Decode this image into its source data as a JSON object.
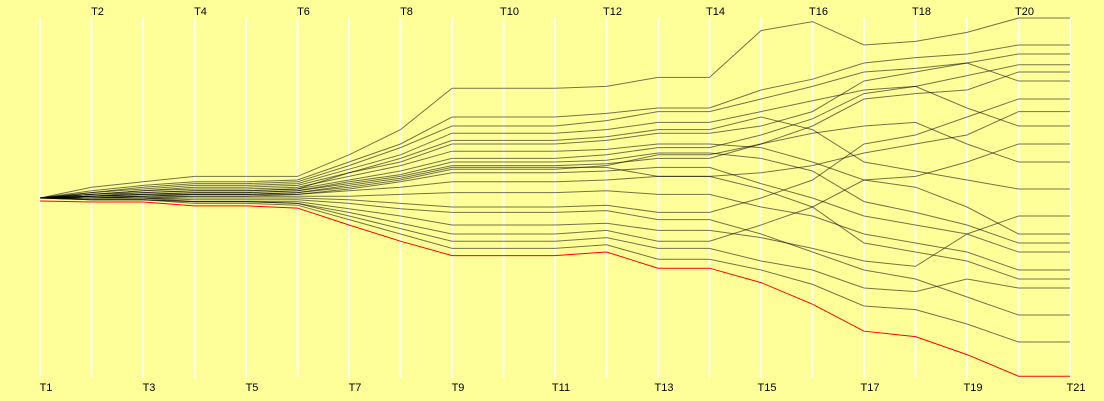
{
  "chart_data": {
    "type": "parallel",
    "categories": [
      "T1",
      "T2",
      "T3",
      "T4",
      "T5",
      "T6",
      "T7",
      "T8",
      "T9",
      "T10",
      "T11",
      "T12",
      "T13",
      "T14",
      "T15",
      "T16",
      "T17",
      "T18",
      "T19",
      "T20",
      "T21"
    ],
    "ylim": [
      -100,
      100
    ],
    "background": "#ffff99",
    "series": [
      {
        "color": "#000000",
        "values": [
          0,
          6,
          9,
          12,
          12,
          12,
          24,
          38,
          61,
          61,
          61,
          62,
          67,
          67,
          93,
          98,
          85,
          87,
          92,
          100,
          100
        ]
      },
      {
        "color": "#000000",
        "values": [
          0,
          4,
          7,
          9,
          9,
          10,
          20,
          30,
          45,
          45,
          45,
          47,
          50,
          50,
          60,
          66,
          75,
          78,
          80,
          85,
          85
        ]
      },
      {
        "color": "#000000",
        "values": [
          0,
          3,
          5,
          7,
          7,
          8,
          16,
          24,
          36,
          36,
          36,
          38,
          42,
          42,
          48,
          54,
          60,
          62,
          68,
          74,
          74
        ]
      },
      {
        "color": "#000000",
        "values": [
          0,
          2,
          4,
          5,
          5,
          6,
          12,
          18,
          26,
          26,
          26,
          27,
          30,
          30,
          28,
          20,
          10,
          6,
          -5,
          -20,
          -20
        ]
      },
      {
        "color": "#000000",
        "values": [
          0,
          1,
          2,
          3,
          3,
          4,
          8,
          12,
          18,
          18,
          18,
          19,
          22,
          22,
          30,
          40,
          55,
          58,
          60,
          70,
          70
        ]
      },
      {
        "color": "#000000",
        "values": [
          0,
          1,
          1,
          2,
          2,
          2,
          4,
          6,
          9,
          9,
          9,
          10,
          12,
          12,
          14,
          18,
          25,
          30,
          35,
          48,
          48
        ]
      },
      {
        "color": "#000000",
        "values": [
          0,
          0,
          0,
          1,
          1,
          1,
          1,
          2,
          3,
          3,
          3,
          4,
          2,
          2,
          -5,
          -10,
          -20,
          -25,
          -30,
          -40,
          -40
        ]
      },
      {
        "color": "#000000",
        "values": [
          0,
          0,
          0,
          -1,
          -1,
          -1,
          -3,
          -6,
          -8,
          -8,
          -8,
          -7,
          -12,
          -12,
          -20,
          -30,
          -40,
          -45,
          -55,
          -65,
          -65
        ]
      },
      {
        "color": "#000000",
        "values": [
          0,
          0,
          0,
          -2,
          -2,
          -3,
          -8,
          -14,
          -20,
          -20,
          -20,
          -18,
          -24,
          -24,
          -15,
          -5,
          10,
          12,
          20,
          30,
          30
        ]
      },
      {
        "color": "#000000",
        "values": [
          0,
          -1,
          -1,
          -3,
          -3,
          -4,
          -12,
          -20,
          -28,
          -28,
          -28,
          -26,
          -34,
          -34,
          -40,
          -48,
          -60,
          -62,
          -70,
          -80,
          -80
        ]
      },
      {
        "color": "#000000",
        "values": [
          0,
          1,
          3,
          4,
          4,
          5,
          10,
          15,
          22,
          22,
          22,
          24,
          28,
          28,
          35,
          44,
          58,
          62,
          50,
          40,
          40
        ]
      },
      {
        "color": "#000000",
        "values": [
          0,
          2,
          3,
          4,
          4,
          5,
          14,
          22,
          32,
          32,
          32,
          34,
          38,
          38,
          45,
          38,
          20,
          15,
          10,
          5,
          5
        ]
      },
      {
        "color": "#000000",
        "values": [
          0,
          0,
          1,
          1,
          1,
          2,
          5,
          9,
          14,
          14,
          14,
          15,
          17,
          17,
          8,
          0,
          -10,
          -15,
          -20,
          -30,
          -30
        ]
      },
      {
        "color": "#000000",
        "values": [
          0,
          0,
          0,
          0,
          0,
          0,
          -1,
          -3,
          -5,
          -5,
          -5,
          -4,
          -8,
          -8,
          0,
          10,
          30,
          35,
          45,
          55,
          55
        ]
      },
      {
        "color": "#000000",
        "values": [
          0,
          -1,
          -1,
          -2,
          -2,
          -3,
          -10,
          -17,
          -24,
          -24,
          -24,
          -22,
          -28,
          -28,
          -35,
          -40,
          -50,
          -52,
          -45,
          -50,
          -50
        ]
      },
      {
        "color": "#000000",
        "values": [
          0,
          1,
          2,
          2,
          2,
          3,
          6,
          10,
          16,
          16,
          16,
          18,
          24,
          24,
          30,
          36,
          40,
          42,
          30,
          20,
          20
        ]
      },
      {
        "color": "#000000",
        "values": [
          0,
          0,
          1,
          2,
          2,
          3,
          7,
          11,
          17,
          17,
          17,
          17,
          12,
          12,
          5,
          -5,
          -25,
          -30,
          -35,
          -45,
          -45
        ]
      },
      {
        "color": "#000000",
        "values": [
          0,
          3,
          6,
          8,
          8,
          9,
          18,
          28,
          40,
          40,
          40,
          43,
          48,
          48,
          55,
          62,
          70,
          72,
          75,
          80,
          80
        ]
      },
      {
        "color": "#000000",
        "values": [
          0,
          -1,
          -1,
          -2,
          -2,
          -2,
          -6,
          -10,
          -15,
          -15,
          -15,
          -14,
          -18,
          -18,
          -22,
          -28,
          -35,
          -38,
          -20,
          -10,
          -10
        ]
      },
      {
        "color": "#000000",
        "values": [
          0,
          1,
          2,
          3,
          3,
          4,
          9,
          13,
          20,
          20,
          20,
          21,
          25,
          25,
          22,
          15,
          -2,
          -8,
          -15,
          -25,
          -25
        ]
      },
      {
        "color": "#000000",
        "values": [
          0,
          2,
          4,
          6,
          6,
          7,
          14,
          20,
          30,
          30,
          30,
          32,
          36,
          36,
          40,
          48,
          65,
          70,
          75,
          65,
          65
        ]
      },
      {
        "color": "#ff0000",
        "values": [
          -1.7,
          -2.2,
          -2.2,
          -4.4,
          -4.4,
          -5.6,
          -15,
          -24,
          -32,
          -32,
          -32,
          -30,
          -39,
          -39,
          -47,
          -59,
          -74,
          -77,
          -87,
          -99,
          -99
        ]
      }
    ]
  }
}
